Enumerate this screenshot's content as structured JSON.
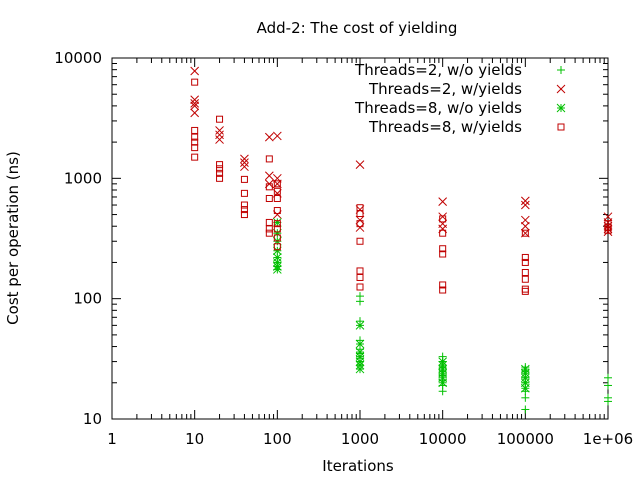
{
  "chart_data": {
    "type": "scatter",
    "title": "Add-2: The cost of yielding",
    "xlabel": "Iterations",
    "ylabel": "Cost per operation (ns)",
    "x_scale": "log",
    "y_scale": "log",
    "xlim": [
      1,
      1000000
    ],
    "ylim": [
      10,
      10000
    ],
    "x_ticks": [
      1,
      10,
      100,
      1000,
      10000,
      100000,
      1000000
    ],
    "x_tick_labels": [
      "1",
      "10",
      "100",
      "1000",
      "10000",
      "100000",
      "1e+06"
    ],
    "y_ticks": [
      10,
      100,
      1000,
      10000
    ],
    "y_tick_labels": [
      "10",
      "100",
      "1000",
      "10000"
    ],
    "grid": false,
    "legend_position": "top-right",
    "series": [
      {
        "name": "Threads=2, w/o yields",
        "color": "#00c000",
        "marker": "plus",
        "points": [
          [
            1000,
            105
          ],
          [
            1000,
            95
          ],
          [
            1000,
            65
          ],
          [
            1000,
            45
          ],
          [
            1000,
            38
          ],
          [
            1000,
            35
          ],
          [
            1000,
            32
          ],
          [
            1000,
            30
          ],
          [
            1000,
            28
          ],
          [
            10000,
            33
          ],
          [
            10000,
            30
          ],
          [
            10000,
            27
          ],
          [
            10000,
            25
          ],
          [
            10000,
            23
          ],
          [
            10000,
            21
          ],
          [
            10000,
            19
          ],
          [
            10000,
            17
          ],
          [
            100000,
            27
          ],
          [
            100000,
            25
          ],
          [
            100000,
            22
          ],
          [
            100000,
            20
          ],
          [
            100000,
            17
          ],
          [
            100000,
            15
          ],
          [
            100000,
            12
          ],
          [
            1000000,
            22
          ],
          [
            1000000,
            19
          ],
          [
            1000000,
            15
          ],
          [
            1000000,
            14
          ]
        ]
      },
      {
        "name": "Threads=2, w/yields",
        "color": "#c00000",
        "marker": "cross",
        "points": [
          [
            10,
            7800
          ],
          [
            10,
            4500
          ],
          [
            10,
            4200
          ],
          [
            10,
            4000
          ],
          [
            10,
            3500
          ],
          [
            20,
            2500
          ],
          [
            20,
            2300
          ],
          [
            20,
            2100
          ],
          [
            40,
            1450
          ],
          [
            40,
            1350
          ],
          [
            40,
            1250
          ],
          [
            80,
            2200
          ],
          [
            80,
            1050
          ],
          [
            80,
            900
          ],
          [
            100,
            2250
          ],
          [
            100,
            1000
          ],
          [
            100,
            900
          ],
          [
            100,
            750
          ],
          [
            100,
            500
          ],
          [
            1000,
            1300
          ],
          [
            1000,
            550
          ],
          [
            1000,
            450
          ],
          [
            1000,
            390
          ],
          [
            10000,
            640
          ],
          [
            10000,
            480
          ],
          [
            10000,
            420
          ],
          [
            10000,
            380
          ],
          [
            100000,
            650
          ],
          [
            100000,
            600
          ],
          [
            100000,
            450
          ],
          [
            100000,
            400
          ],
          [
            100000,
            350
          ],
          [
            1000000,
            480
          ],
          [
            1000000,
            430
          ],
          [
            1000000,
            400
          ],
          [
            1000000,
            380
          ],
          [
            1000000,
            360
          ]
        ]
      },
      {
        "name": "Threads=8, w/o yields",
        "color": "#00c000",
        "marker": "star",
        "points": [
          [
            100,
            430
          ],
          [
            100,
            350
          ],
          [
            100,
            300
          ],
          [
            100,
            250
          ],
          [
            100,
            220
          ],
          [
            100,
            200
          ],
          [
            100,
            185
          ],
          [
            100,
            175
          ],
          [
            1000,
            60
          ],
          [
            1000,
            42
          ],
          [
            1000,
            36
          ],
          [
            1000,
            33
          ],
          [
            1000,
            30
          ],
          [
            1000,
            28
          ],
          [
            1000,
            26
          ],
          [
            10000,
            30
          ],
          [
            10000,
            28
          ],
          [
            10000,
            26
          ],
          [
            10000,
            24
          ],
          [
            10000,
            22
          ],
          [
            10000,
            20
          ],
          [
            100000,
            26
          ],
          [
            100000,
            24
          ],
          [
            100000,
            22
          ],
          [
            100000,
            20
          ],
          [
            100000,
            18
          ]
        ]
      },
      {
        "name": "Threads=8, w/yields",
        "color": "#c00000",
        "marker": "square",
        "points": [
          [
            10,
            6300
          ],
          [
            10,
            2500
          ],
          [
            10,
            2200
          ],
          [
            10,
            2000
          ],
          [
            10,
            1800
          ],
          [
            10,
            1500
          ],
          [
            20,
            3100
          ],
          [
            20,
            1300
          ],
          [
            20,
            1200
          ],
          [
            20,
            1100
          ],
          [
            20,
            1000
          ],
          [
            40,
            980
          ],
          [
            40,
            750
          ],
          [
            40,
            600
          ],
          [
            40,
            550
          ],
          [
            40,
            500
          ],
          [
            80,
            1450
          ],
          [
            80,
            850
          ],
          [
            80,
            680
          ],
          [
            80,
            430
          ],
          [
            80,
            380
          ],
          [
            80,
            350
          ],
          [
            100,
            900
          ],
          [
            100,
            780
          ],
          [
            100,
            680
          ],
          [
            100,
            540
          ],
          [
            100,
            420
          ],
          [
            100,
            380
          ],
          [
            100,
            320
          ],
          [
            100,
            270
          ],
          [
            1000,
            570
          ],
          [
            1000,
            510
          ],
          [
            1000,
            420
          ],
          [
            1000,
            300
          ],
          [
            1000,
            170
          ],
          [
            1000,
            150
          ],
          [
            1000,
            125
          ],
          [
            10000,
            460
          ],
          [
            10000,
            350
          ],
          [
            10000,
            260
          ],
          [
            10000,
            235
          ],
          [
            10000,
            130
          ],
          [
            10000,
            118
          ],
          [
            100000,
            350
          ],
          [
            100000,
            220
          ],
          [
            100000,
            200
          ],
          [
            100000,
            165
          ],
          [
            100000,
            145
          ],
          [
            100000,
            120
          ],
          [
            100000,
            115
          ],
          [
            1000000,
            420
          ],
          [
            1000000,
            390
          ],
          [
            1000000,
            370
          ]
        ]
      }
    ]
  }
}
